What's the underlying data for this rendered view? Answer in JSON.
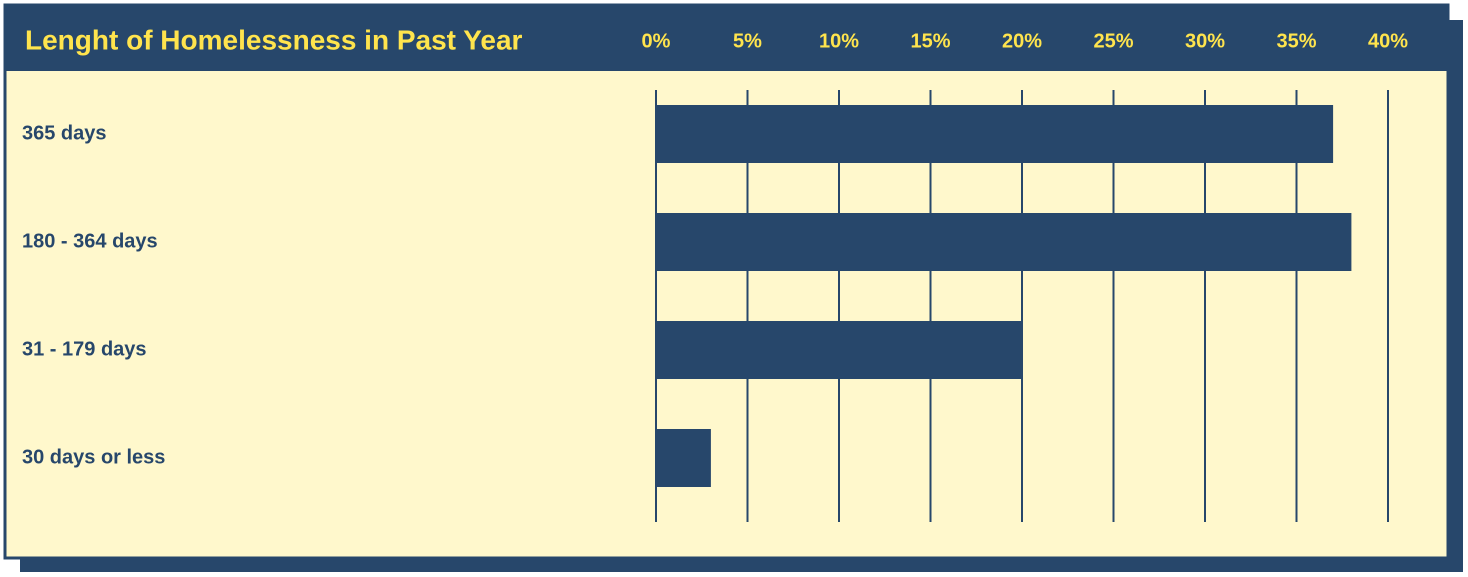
{
  "chart_data": {
    "type": "barh",
    "title": "Lenght of Homelessness in Past Year",
    "categories": [
      "365 days",
      "180 - 364 days",
      "31 - 179 days",
      "30 days or less"
    ],
    "values": [
      37,
      38,
      20,
      3
    ],
    "color": "#27476b",
    "xlim": [
      0,
      40
    ],
    "xticks": [
      {
        "value": 0,
        "label": "0%"
      },
      {
        "value": 5,
        "label": "5%"
      },
      {
        "value": 10,
        "label": "10%"
      },
      {
        "value": 15,
        "label": "15%"
      },
      {
        "value": 20,
        "label": "20%"
      },
      {
        "value": 25,
        "label": "25%"
      },
      {
        "value": 30,
        "label": "30%"
      },
      {
        "value": 35,
        "label": "35%"
      },
      {
        "value": 40,
        "label": "40%"
      }
    ],
    "grid": true
  }
}
